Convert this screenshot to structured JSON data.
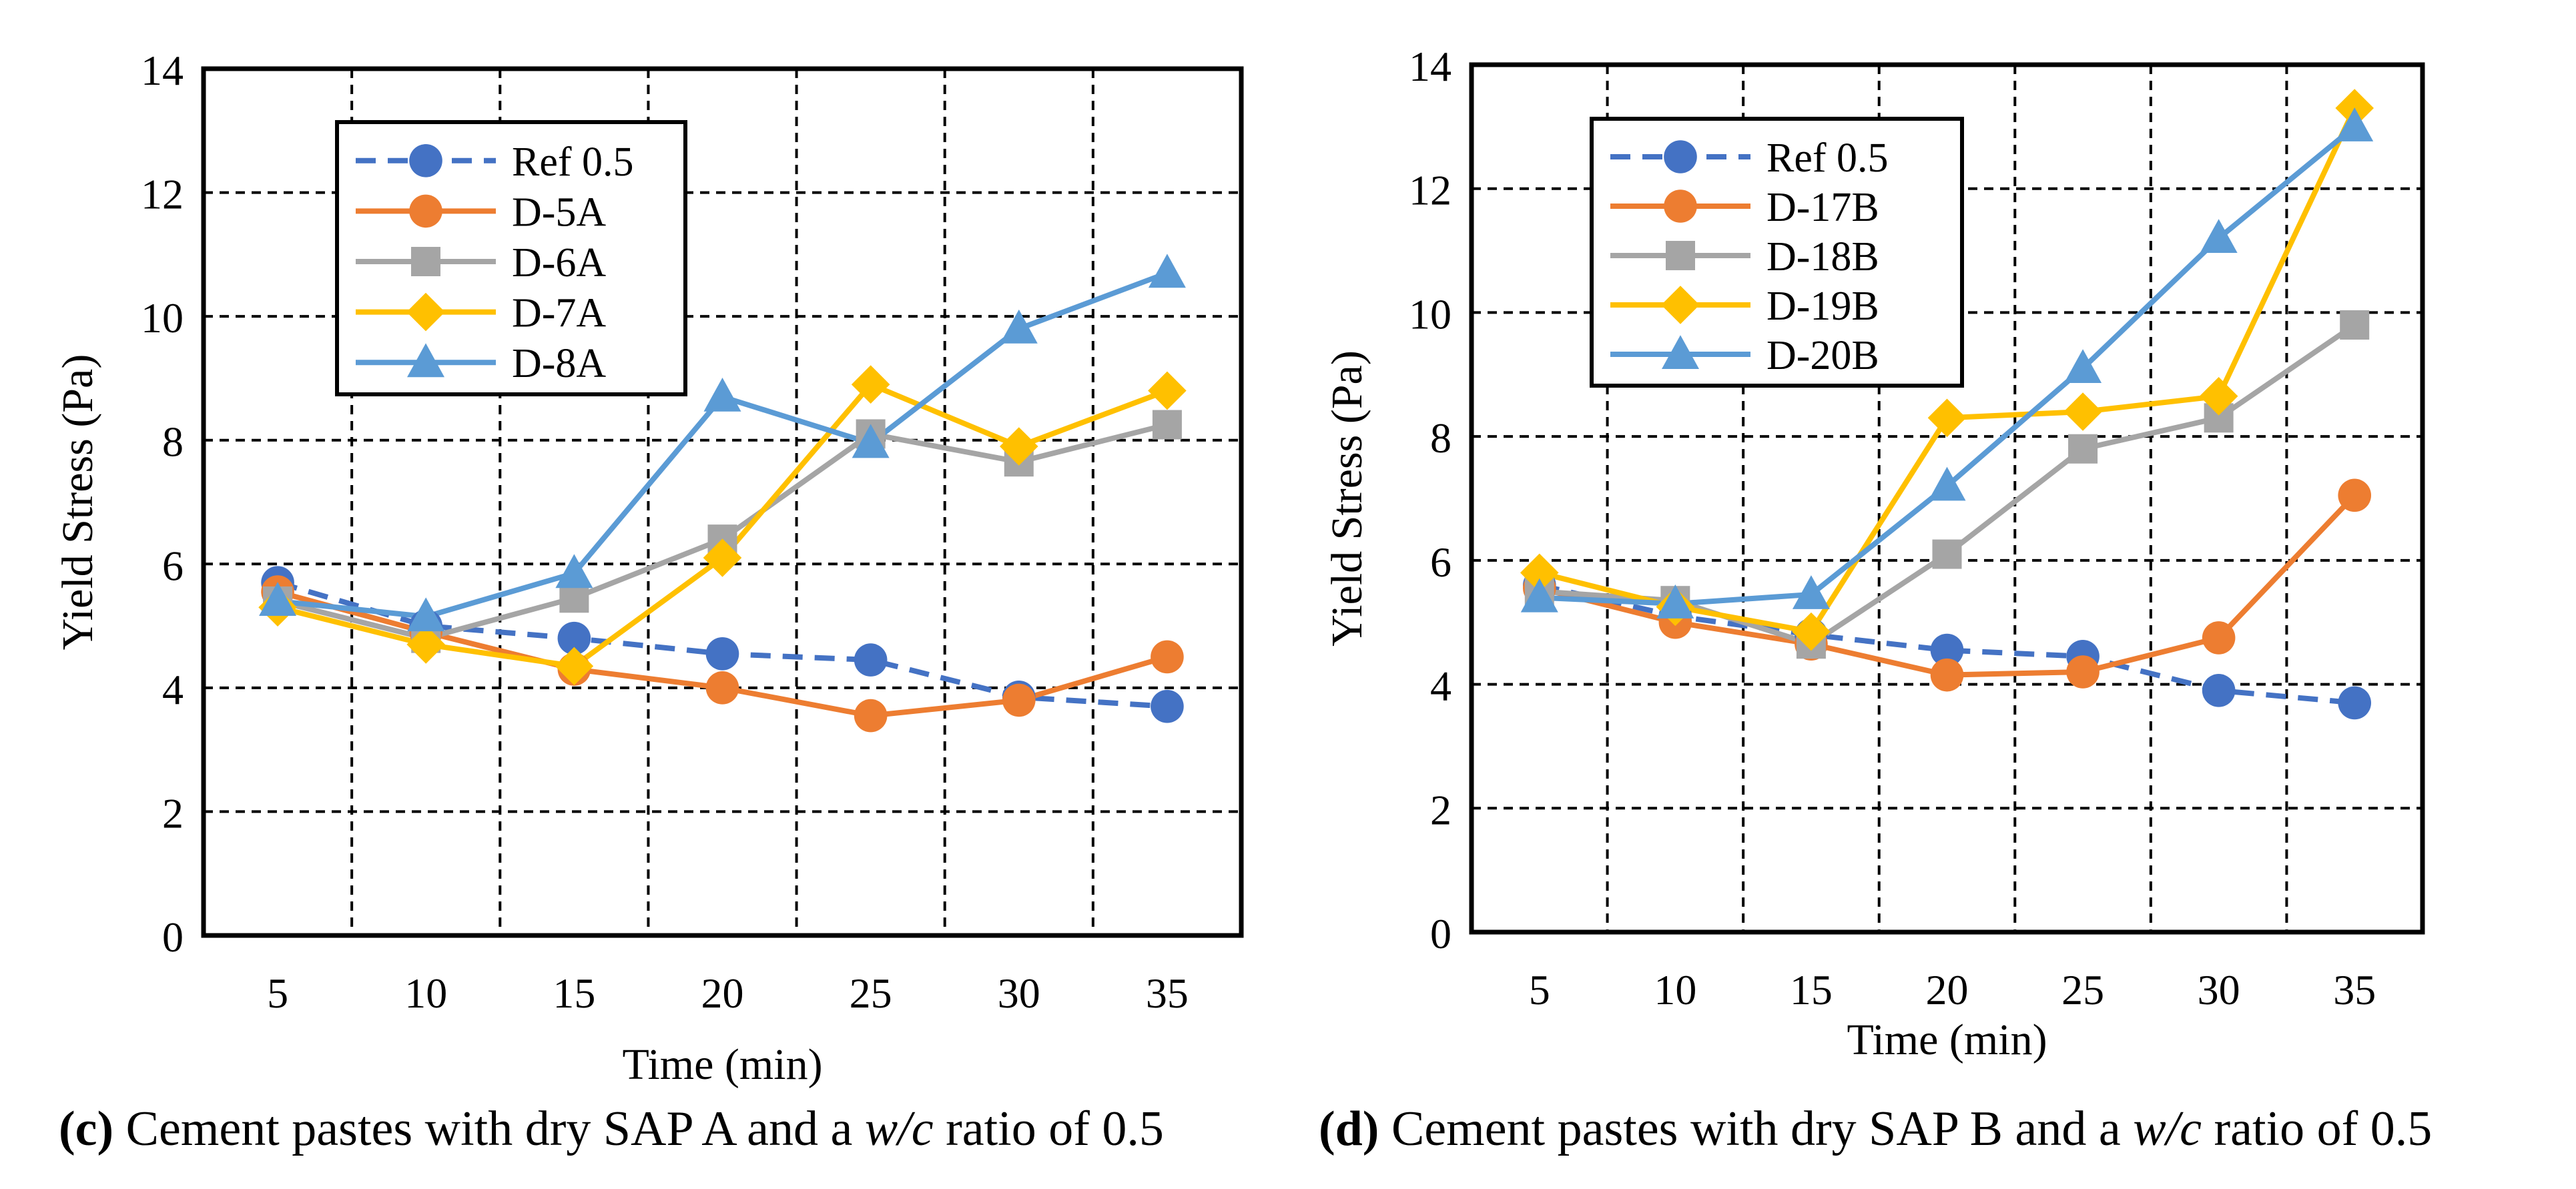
{
  "colors": {
    "ref": "#4472C4",
    "orange": "#ED7D31",
    "gray": "#A5A5A5",
    "yellow": "#FFC000",
    "blue": "#5B9BD5"
  },
  "chart_data": [
    {
      "type": "line",
      "title": "",
      "xlabel": "Time (min)",
      "ylabel": "Yield Stress (Pa)",
      "x": [
        5,
        10,
        15,
        20,
        25,
        30,
        35
      ],
      "ylim": [
        0,
        14
      ],
      "yticks": [
        0,
        2,
        4,
        6,
        8,
        10,
        12,
        14
      ],
      "grid": true,
      "legend_position": "top-left",
      "series": [
        {
          "name": "Ref 0.5",
          "color": "#4472C4",
          "marker": "circle",
          "dashed": true,
          "values": [
            5.7,
            5.0,
            4.8,
            4.55,
            4.45,
            3.85,
            3.7
          ]
        },
        {
          "name": "D-5A",
          "color": "#ED7D31",
          "marker": "circle",
          "dashed": false,
          "values": [
            5.55,
            4.9,
            4.3,
            4.0,
            3.55,
            3.8,
            4.5
          ]
        },
        {
          "name": "D-6A",
          "color": "#A5A5A5",
          "marker": "square",
          "dashed": false,
          "values": [
            5.4,
            4.8,
            5.45,
            6.4,
            8.1,
            7.65,
            8.25
          ]
        },
        {
          "name": "D-7A",
          "color": "#FFC000",
          "marker": "diamond",
          "dashed": false,
          "values": [
            5.3,
            4.7,
            4.35,
            6.1,
            8.9,
            7.9,
            8.8
          ]
        },
        {
          "name": "D-8A",
          "color": "#5B9BD5",
          "marker": "triangle",
          "dashed": false,
          "values": [
            5.4,
            5.15,
            5.85,
            8.7,
            7.95,
            9.8,
            10.7
          ]
        }
      ],
      "caption": {
        "label": "(c)",
        "before": "Cement pastes with dry SAP A and a",
        "italic": "w/c",
        "after": "ratio of 0.5"
      }
    },
    {
      "type": "line",
      "title": "",
      "xlabel": "Time (min)",
      "ylabel": "Yield Stress (Pa)",
      "x": [
        5,
        10,
        15,
        20,
        25,
        30,
        35
      ],
      "ylim": [
        0,
        14
      ],
      "yticks": [
        0,
        2,
        4,
        6,
        8,
        10,
        12,
        14
      ],
      "grid": true,
      "legend_position": "top-left",
      "series": [
        {
          "name": "Ref 0.5",
          "color": "#4472C4",
          "marker": "circle",
          "dashed": true,
          "values": [
            5.6,
            5.1,
            4.8,
            4.55,
            4.45,
            3.9,
            3.7
          ]
        },
        {
          "name": "D-17B",
          "color": "#ED7D31",
          "marker": "circle",
          "dashed": false,
          "values": [
            5.55,
            5.0,
            4.65,
            4.15,
            4.2,
            4.75,
            7.05
          ]
        },
        {
          "name": "D-18B",
          "color": "#A5A5A5",
          "marker": "square",
          "dashed": false,
          "values": [
            5.5,
            5.35,
            4.65,
            6.1,
            7.8,
            8.3,
            9.8
          ]
        },
        {
          "name": "D-19B",
          "color": "#FFC000",
          "marker": "diamond",
          "dashed": false,
          "values": [
            5.8,
            5.25,
            4.85,
            8.3,
            8.4,
            8.65,
            13.3
          ]
        },
        {
          "name": "D-20B",
          "color": "#5B9BD5",
          "marker": "triangle",
          "dashed": false,
          "values": [
            5.4,
            5.3,
            5.45,
            7.2,
            9.1,
            11.2,
            13.0
          ]
        }
      ],
      "caption": {
        "label": "(d)",
        "before": "Cement pastes with dry SAP B and a",
        "italic": "w/c",
        "after": "ratio of 0.5"
      }
    }
  ]
}
